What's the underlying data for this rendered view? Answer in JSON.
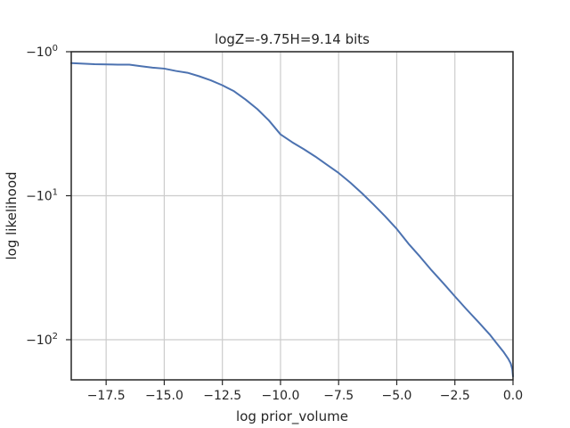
{
  "chart_data": {
    "type": "line",
    "title": "logZ=-9.75H=9.14 bits",
    "xlabel": "log prior_volume",
    "ylabel": "log likelihood",
    "xlim": [
      -19,
      0
    ],
    "ylim": [
      -190,
      -1
    ],
    "yscale": "symlog",
    "grid": true,
    "x_ticks": [
      -17.5,
      -15.0,
      -12.5,
      -10.0,
      -7.5,
      -5.0,
      -2.5,
      0.0
    ],
    "x_tick_labels": [
      "−17.5",
      "−15.0",
      "−12.5",
      "−10.0",
      "−7.5",
      "−5.0",
      "−2.5",
      "0.0"
    ],
    "y_ticks": [
      -1,
      -10,
      -100
    ],
    "y_tick_labels": [
      {
        "base": "−10",
        "exp": "0"
      },
      {
        "base": "−10",
        "exp": "1"
      },
      {
        "base": "−10",
        "exp": "2"
      }
    ],
    "color": "#4c72b0",
    "x": [
      -19,
      -18.0,
      -17.0,
      -16.5,
      -16.0,
      -15.5,
      -15.0,
      -14.5,
      -14.0,
      -13.5,
      -13.0,
      -12.5,
      -12.0,
      -11.5,
      -11.0,
      -10.5,
      -10.0,
      -9.5,
      -9.0,
      -8.5,
      -8.0,
      -7.5,
      -7.0,
      -6.5,
      -6.0,
      -5.5,
      -5.0,
      -4.5,
      -4.0,
      -3.5,
      -3.0,
      -2.5,
      -2.0,
      -1.5,
      -1.0,
      -0.7,
      -0.4,
      -0.2,
      -0.1,
      -0.03,
      0.0
    ],
    "values": [
      -1.2,
      -1.22,
      -1.23,
      -1.23,
      -1.26,
      -1.29,
      -1.31,
      -1.36,
      -1.4,
      -1.48,
      -1.58,
      -1.71,
      -1.88,
      -2.15,
      -2.5,
      -3.0,
      -3.75,
      -4.25,
      -4.75,
      -5.35,
      -6.1,
      -6.95,
      -8.1,
      -9.6,
      -11.5,
      -13.9,
      -17.0,
      -21.5,
      -26.5,
      -33.0,
      -40.5,
      -50.0,
      -61.5,
      -75.0,
      -92.0,
      -106.0,
      -122.0,
      -136.0,
      -146.0,
      -160.0,
      -180.0
    ]
  }
}
